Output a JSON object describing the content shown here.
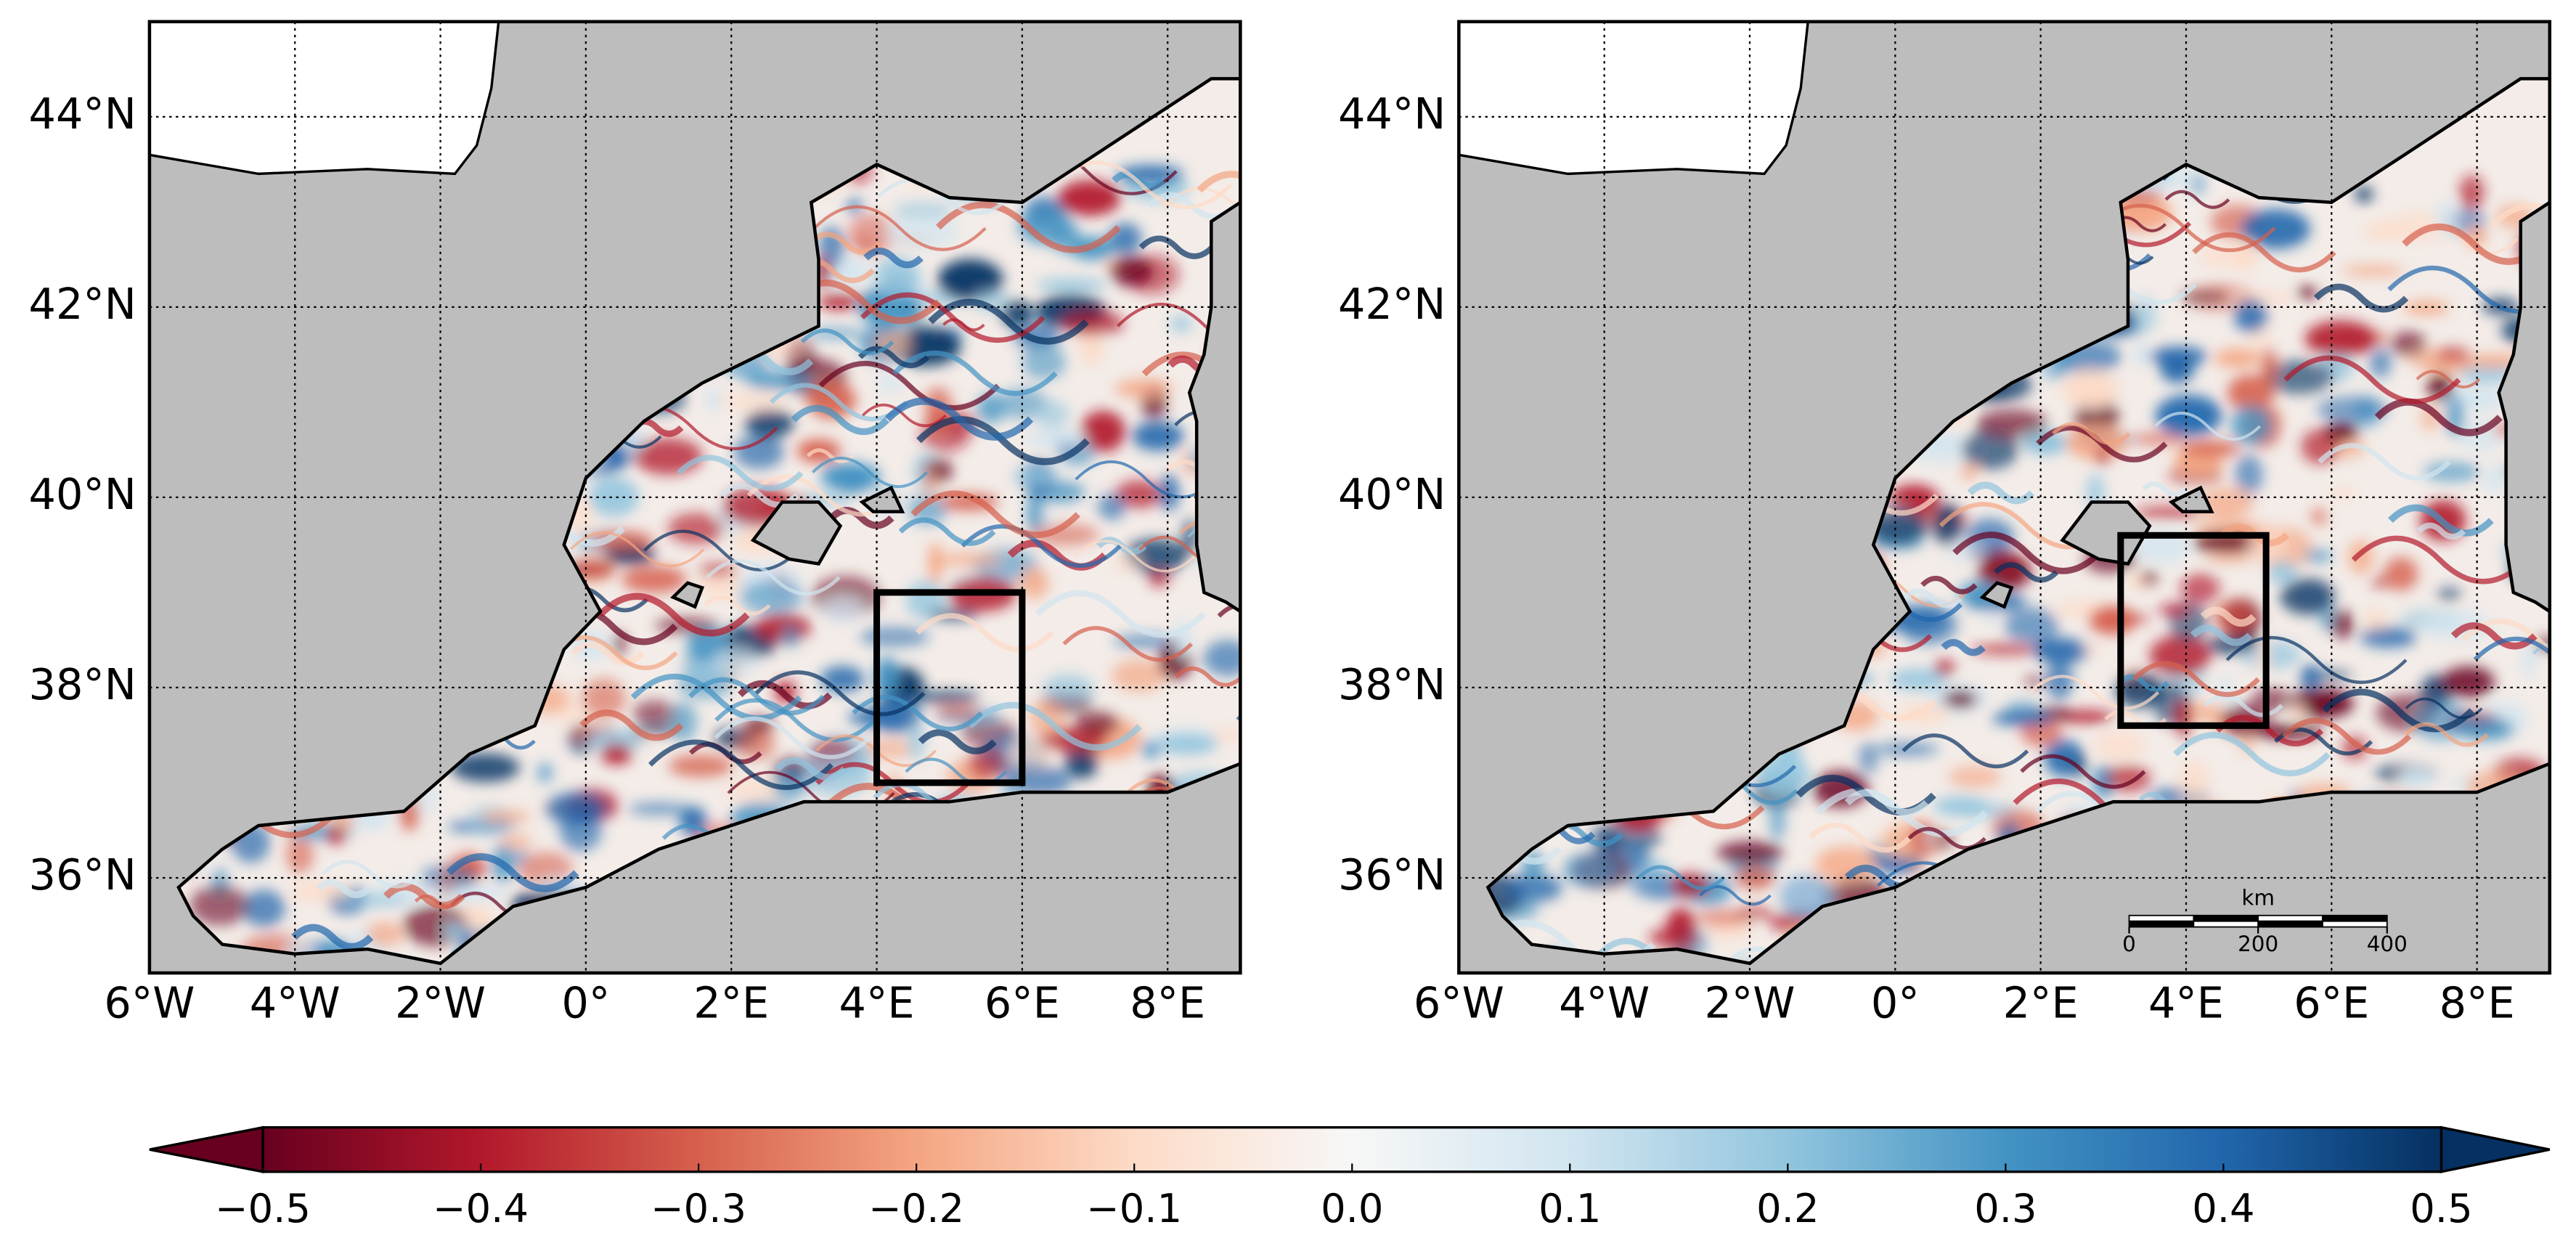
{
  "maps": [
    {
      "xlim": [
        -6,
        9
      ],
      "ylim": [
        35,
        45
      ],
      "xticks": [
        {
          "value": -6,
          "label": "6°W"
        },
        {
          "value": -4,
          "label": "4°W"
        },
        {
          "value": -2,
          "label": "2°W"
        },
        {
          "value": 0,
          "label": "0°"
        },
        {
          "value": 2,
          "label": "2°E"
        },
        {
          "value": 4,
          "label": "4°E"
        },
        {
          "value": 6,
          "label": "6°E"
        },
        {
          "value": 8,
          "label": "8°E"
        }
      ],
      "yticks": [
        {
          "value": 36,
          "label": "36°N"
        },
        {
          "value": 38,
          "label": "38°N"
        },
        {
          "value": 40,
          "label": "40°N"
        },
        {
          "value": 42,
          "label": "42°N"
        },
        {
          "value": 44,
          "label": "44°N"
        }
      ],
      "box": {
        "lon": [
          4,
          6
        ],
        "lat": [
          37,
          39
        ]
      }
    },
    {
      "xlim": [
        -6,
        9
      ],
      "ylim": [
        35,
        45
      ],
      "xticks": [
        {
          "value": -6,
          "label": "6°W"
        },
        {
          "value": -4,
          "label": "4°W"
        },
        {
          "value": -2,
          "label": "2°W"
        },
        {
          "value": 0,
          "label": "0°"
        },
        {
          "value": 2,
          "label": "2°E"
        },
        {
          "value": 4,
          "label": "4°E"
        },
        {
          "value": 6,
          "label": "6°E"
        },
        {
          "value": 8,
          "label": "8°E"
        }
      ],
      "yticks": [
        {
          "value": 36,
          "label": "36°N"
        },
        {
          "value": 38,
          "label": "38°N"
        },
        {
          "value": 40,
          "label": "40°N"
        },
        {
          "value": 42,
          "label": "42°N"
        },
        {
          "value": 44,
          "label": "44°N"
        }
      ],
      "box": {
        "lon": [
          3.1,
          5.1
        ],
        "lat": [
          37.6,
          39.6
        ]
      },
      "scalebar": {
        "unit": "km",
        "ticks": [
          0,
          200,
          400
        ]
      }
    }
  ],
  "colorbar": {
    "lim": [
      -0.5,
      0.5
    ],
    "ticks": [
      {
        "value": -0.5,
        "label": "−0.5"
      },
      {
        "value": -0.4,
        "label": "−0.4"
      },
      {
        "value": -0.3,
        "label": "−0.3"
      },
      {
        "value": -0.2,
        "label": "−0.2"
      },
      {
        "value": -0.1,
        "label": "−0.1"
      },
      {
        "value": 0,
        "label": "0.0"
      },
      0.1,
      0.2,
      0.3,
      0.4,
      0.5
    ]
  }
}
